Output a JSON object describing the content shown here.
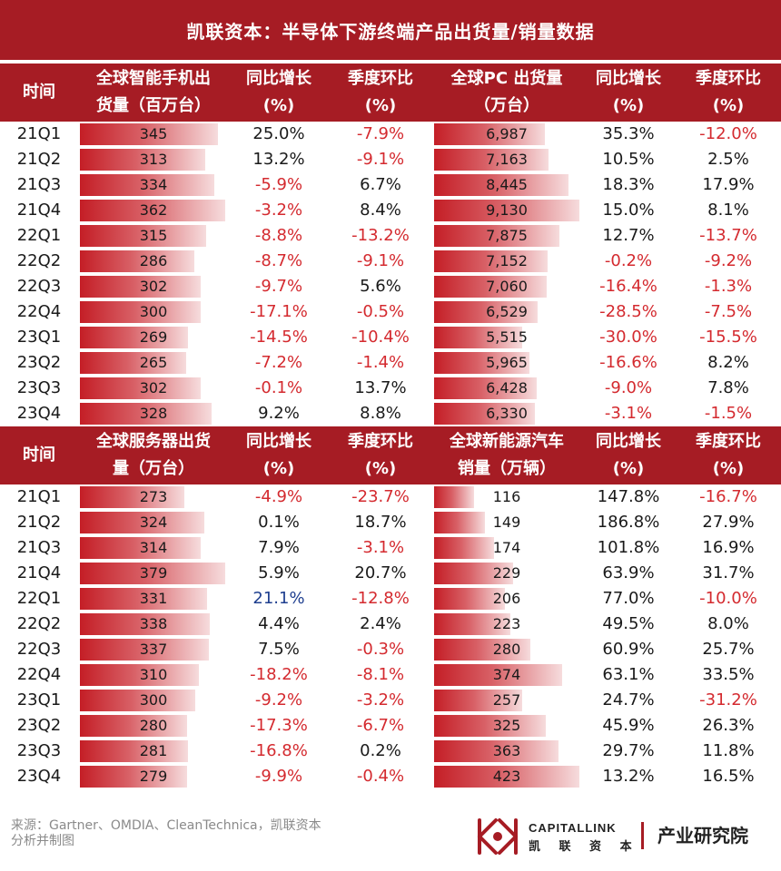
{
  "title": "凯联资本：半导体下游终端产品出货量/销量数据",
  "colors": {
    "header_bg": "#a61c24",
    "bar_start": "#c41e26",
    "bar_end": "#f6dcdd",
    "negative": "#d42a2f",
    "highlight_blue": "#1f3f8f"
  },
  "footer": {
    "source_line1": "来源：Gartner、OMDIA、CleanTechnica，凯联资本",
    "source_line2": "分析并制图",
    "logo_en": "CAPITALLINK",
    "logo_cn": "凯 联 资 本",
    "dept": "产业研究院"
  },
  "chart_data": [
    {
      "type": "table",
      "headers": {
        "time": "时间",
        "metric": [
          "全球智能手机出",
          "货量（百万台）"
        ],
        "yoy": [
          "同比增长",
          "(%)"
        ],
        "qoq": [
          "季度环比",
          "(%)"
        ]
      },
      "categories": [
        "21Q1",
        "21Q2",
        "21Q3",
        "21Q4",
        "22Q1",
        "22Q2",
        "22Q3",
        "22Q4",
        "23Q1",
        "23Q2",
        "23Q3",
        "23Q4"
      ],
      "values": [
        345,
        313,
        334,
        362,
        315,
        286,
        302,
        300,
        269,
        265,
        302,
        328
      ],
      "values_text": [
        "345",
        "313",
        "334",
        "362",
        "315",
        "286",
        "302",
        "300",
        "269",
        "265",
        "302",
        "328"
      ],
      "bar_max": 362,
      "yoy": [
        "25.0%",
        "13.2%",
        "-5.9%",
        "-3.2%",
        "-8.8%",
        "-8.7%",
        "-9.7%",
        "-17.1%",
        "-14.5%",
        "-7.2%",
        "-0.1%",
        "9.2%"
      ],
      "qoq": [
        "-7.9%",
        "-9.1%",
        "6.7%",
        "8.4%",
        "-13.2%",
        "-9.1%",
        "5.6%",
        "-0.5%",
        "-10.4%",
        "-1.4%",
        "13.7%",
        "8.8%"
      ]
    },
    {
      "type": "table",
      "headers": {
        "metric": [
          "全球PC 出货量",
          "（万台）"
        ],
        "yoy": [
          "同比增长",
          "(%)"
        ],
        "qoq": [
          "季度环比",
          "(%)"
        ]
      },
      "categories": [
        "21Q1",
        "21Q2",
        "21Q3",
        "21Q4",
        "22Q1",
        "22Q2",
        "22Q3",
        "22Q4",
        "23Q1",
        "23Q2",
        "23Q3",
        "23Q4"
      ],
      "values": [
        6987,
        7163,
        8445,
        9130,
        7875,
        7152,
        7060,
        6529,
        5515,
        5965,
        6428,
        6330
      ],
      "values_text": [
        "6,987",
        "7,163",
        "8,445",
        "9,130",
        "7,875",
        "7,152",
        "7,060",
        "6,529",
        "5,515",
        "5,965",
        "6,428",
        "6,330"
      ],
      "bar_max": 9130,
      "yoy": [
        "35.3%",
        "10.5%",
        "18.3%",
        "15.0%",
        "12.7%",
        "-0.2%",
        "-16.4%",
        "-28.5%",
        "-30.0%",
        "-16.6%",
        "-9.0%",
        "-3.1%"
      ],
      "qoq": [
        "-12.0%",
        "2.5%",
        "17.9%",
        "8.1%",
        "-13.7%",
        "-9.2%",
        "-1.3%",
        "-7.5%",
        "-15.5%",
        "8.2%",
        "7.8%",
        "-1.5%"
      ]
    },
    {
      "type": "table",
      "headers": {
        "time": "时间",
        "metric": [
          "全球服务器出货",
          "量（万台）"
        ],
        "yoy": [
          "同比增长",
          "(%)"
        ],
        "qoq": [
          "季度环比",
          "(%)"
        ]
      },
      "categories": [
        "21Q1",
        "21Q2",
        "21Q3",
        "21Q4",
        "22Q1",
        "22Q2",
        "22Q3",
        "22Q4",
        "23Q1",
        "23Q2",
        "23Q3",
        "23Q4"
      ],
      "values": [
        273,
        324,
        314,
        379,
        331,
        338,
        337,
        310,
        300,
        280,
        281,
        279
      ],
      "values_text": [
        "273",
        "324",
        "314",
        "379",
        "331",
        "338",
        "337",
        "310",
        "300",
        "280",
        "281",
        "279"
      ],
      "bar_max": 379,
      "yoy": [
        "-4.9%",
        "0.1%",
        "7.9%",
        "5.9%",
        "21.1%",
        "4.4%",
        "7.5%",
        "-18.2%",
        "-9.2%",
        "-17.3%",
        "-16.8%",
        "-9.9%"
      ],
      "qoq": [
        "-23.7%",
        "18.7%",
        "-3.1%",
        "20.7%",
        "-12.8%",
        "2.4%",
        "-0.3%",
        "-8.1%",
        "-3.2%",
        "-6.7%",
        "0.2%",
        "-0.4%"
      ],
      "blue_cells": [
        "yoy:4"
      ]
    },
    {
      "type": "table",
      "headers": {
        "metric": [
          "全球新能源汽车",
          "销量（万辆）"
        ],
        "yoy": [
          "同比增长",
          "(%)"
        ],
        "qoq": [
          "季度环比",
          "(%)"
        ]
      },
      "categories": [
        "21Q1",
        "21Q2",
        "21Q3",
        "21Q4",
        "22Q1",
        "22Q2",
        "22Q3",
        "22Q4",
        "23Q1",
        "23Q2",
        "23Q3",
        "23Q4"
      ],
      "values": [
        116,
        149,
        174,
        229,
        206,
        223,
        280,
        374,
        257,
        325,
        363,
        423
      ],
      "values_text": [
        "116",
        "149",
        "174",
        "229",
        "206",
        "223",
        "280",
        "374",
        "257",
        "325",
        "363",
        "423"
      ],
      "bar_max": 423,
      "yoy": [
        "147.8%",
        "186.8%",
        "101.8%",
        "63.9%",
        "77.0%",
        "49.5%",
        "60.9%",
        "63.1%",
        "24.7%",
        "45.9%",
        "29.7%",
        "13.2%"
      ],
      "qoq": [
        "-16.7%",
        "27.9%",
        "16.9%",
        "31.7%",
        "-10.0%",
        "8.0%",
        "25.7%",
        "33.5%",
        "-31.2%",
        "26.3%",
        "11.8%",
        "16.5%"
      ]
    }
  ]
}
